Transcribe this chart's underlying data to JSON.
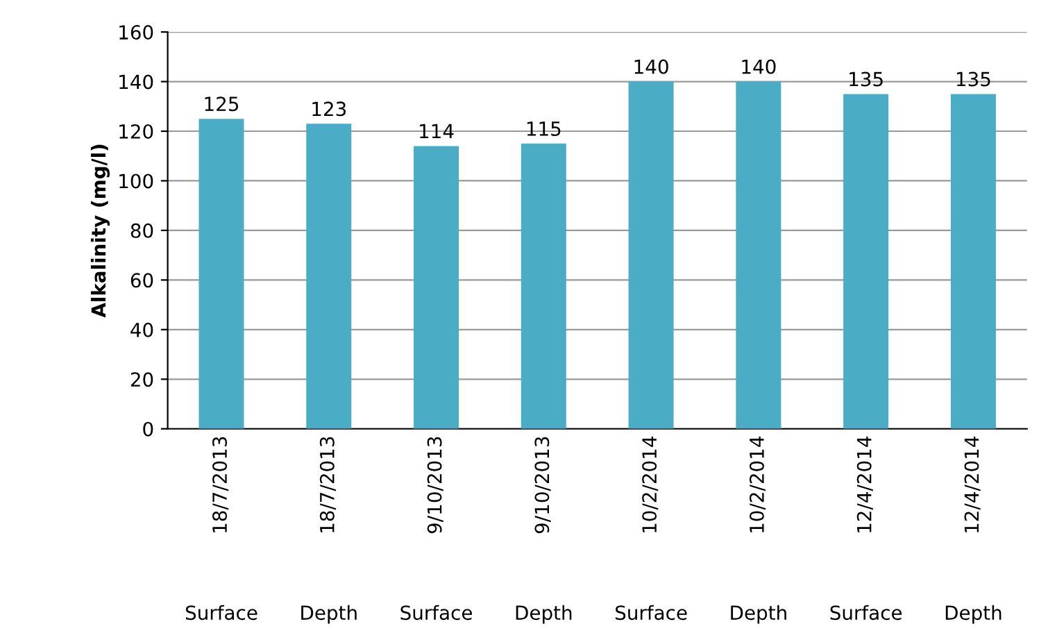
{
  "chart_data": {
    "type": "bar",
    "ylabel": "Alkalinity (mg/l)",
    "categories": [
      "18/7/2013",
      "18/7/2013",
      "9/10/2013",
      "9/10/2013",
      "10/2/2014",
      "10/2/2014",
      "12/4/2014",
      "12/4/2014"
    ],
    "annotations": [
      "Surface",
      "Depth",
      "Surface",
      "Depth",
      "Surface",
      "Depth",
      "Surface",
      "Depth"
    ],
    "values": [
      125,
      123,
      114,
      115,
      140,
      140,
      135,
      135
    ],
    "color": "#4bacc6",
    "data_labels": true,
    "grid": "y",
    "ylim": [
      0,
      160
    ],
    "yticks": [
      0,
      20,
      40,
      60,
      80,
      100,
      120,
      140,
      160
    ]
  }
}
